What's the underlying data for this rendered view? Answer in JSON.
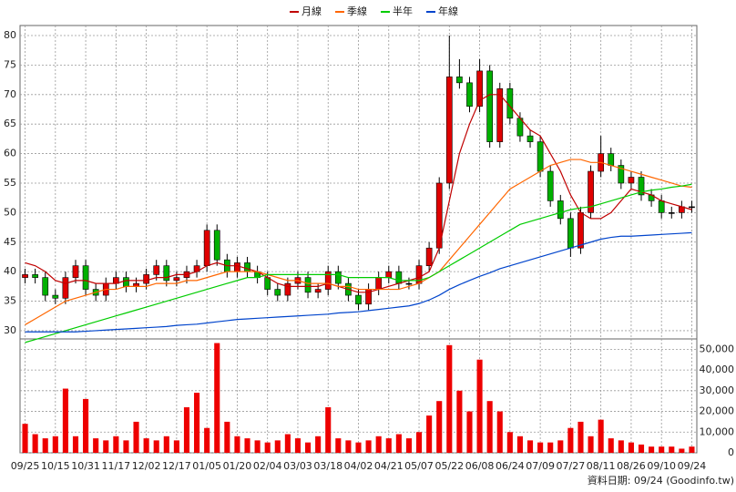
{
  "chart_data": {
    "type": "candlestick",
    "x": [
      0,
      1,
      2,
      3,
      4,
      5,
      6,
      7,
      8,
      9,
      10,
      11,
      12,
      13,
      14,
      15,
      16,
      17,
      18,
      19,
      20,
      21,
      22,
      23,
      24,
      25,
      26,
      27,
      28,
      29,
      30,
      31,
      32,
      33,
      34,
      35,
      36,
      37,
      38,
      39,
      40,
      41,
      42,
      43,
      44,
      45,
      46,
      47,
      48,
      49,
      50,
      51,
      52,
      53,
      54,
      55,
      56,
      57,
      58,
      59,
      60,
      61,
      62,
      63,
      64,
      65,
      66
    ],
    "xlim": [
      -0.5,
      66.5
    ],
    "xticks": [
      {
        "value": 0,
        "label": "09/25"
      },
      {
        "value": 3,
        "label": "10/15"
      },
      {
        "value": 6,
        "label": "10/31"
      },
      {
        "value": 9,
        "label": "11/17"
      },
      {
        "value": 12,
        "label": "12/02"
      },
      {
        "value": 15,
        "label": "12/17"
      },
      {
        "value": 18,
        "label": "01/05"
      },
      {
        "value": 21,
        "label": "01/20"
      },
      {
        "value": 24,
        "label": "02/04"
      },
      {
        "value": 27,
        "label": "03/03"
      },
      {
        "value": 30,
        "label": "03/18"
      },
      {
        "value": 33,
        "label": "04/02"
      },
      {
        "value": 36,
        "label": "04/21"
      },
      {
        "value": 39,
        "label": "05/07"
      },
      {
        "value": 42,
        "label": "05/22"
      },
      {
        "value": 45,
        "label": "06/08"
      },
      {
        "value": 48,
        "label": "06/24"
      },
      {
        "value": 51,
        "label": "07/09"
      },
      {
        "value": 54,
        "label": "07/27"
      },
      {
        "value": 57,
        "label": "08/11"
      },
      {
        "value": 60,
        "label": "08/26"
      },
      {
        "value": 63,
        "label": "09/10"
      },
      {
        "value": 66,
        "label": "09/24"
      }
    ],
    "open": [
      39,
      39.5,
      39,
      36,
      35.5,
      39,
      41,
      37,
      36,
      38,
      39,
      37.5,
      38,
      39.5,
      41,
      38.5,
      39,
      40,
      41,
      47,
      42,
      40,
      41.5,
      40,
      39,
      37,
      36,
      38,
      39,
      36.5,
      37,
      40,
      38,
      36,
      34.5,
      37,
      39,
      40,
      38,
      38,
      41,
      44,
      55,
      73,
      72,
      68,
      74,
      62,
      71,
      66,
      63,
      62,
      57,
      52,
      49,
      44,
      50,
      57,
      60,
      58,
      55,
      56,
      53,
      52,
      50,
      50,
      51
    ],
    "high": [
      40.5,
      40.5,
      40,
      37,
      40,
      42,
      42,
      38,
      39,
      40,
      40,
      39,
      40.5,
      42,
      42,
      40,
      41,
      42,
      48,
      48,
      43,
      42.5,
      42.5,
      41,
      40,
      38,
      39,
      40,
      40,
      38,
      41,
      41,
      39,
      37,
      38,
      40,
      41,
      41,
      39,
      42,
      45,
      56,
      80,
      76,
      73,
      76,
      75,
      72,
      72,
      67,
      64,
      63,
      58,
      53,
      50,
      51,
      58,
      63,
      61,
      59,
      57,
      57,
      54,
      53,
      51,
      52,
      52
    ],
    "low": [
      38,
      38,
      35,
      34.5,
      34.5,
      38,
      36,
      35,
      35,
      37,
      36.5,
      36.5,
      37,
      38.5,
      37.5,
      37.5,
      38,
      39,
      40,
      41,
      39,
      39,
      39,
      38,
      36,
      35,
      35,
      37,
      35.5,
      35.5,
      36,
      37,
      35,
      33.5,
      33.5,
      36,
      38,
      37,
      37,
      37,
      40,
      43,
      54,
      71,
      67,
      67,
      61,
      61,
      65,
      62,
      61,
      56,
      51,
      48,
      42.5,
      43,
      49,
      56,
      57,
      54,
      54,
      52,
      51,
      49,
      49,
      49,
      50
    ],
    "close": [
      39.5,
      39,
      36,
      35.5,
      39,
      41,
      37,
      36,
      38,
      39,
      37.5,
      38,
      39.5,
      41,
      38.5,
      39,
      40,
      41,
      47,
      42,
      40,
      41.5,
      40,
      39,
      37,
      36,
      38,
      39,
      36.5,
      37,
      40,
      38,
      36,
      34.5,
      37,
      39,
      40,
      38,
      38,
      41,
      44,
      55,
      73,
      72,
      68,
      74,
      62,
      71,
      66,
      63,
      62,
      57,
      52,
      49,
      44,
      50,
      57,
      60,
      58,
      55,
      56,
      53,
      52,
      50,
      50,
      51,
      51
    ],
    "up_color": "#e00000",
    "down_color": "#00b000",
    "ylim": [
      28.6,
      81.7
    ],
    "yticks": [
      30,
      35,
      40,
      45,
      50,
      55,
      60,
      65,
      70,
      75,
      80
    ],
    "grid": true,
    "series": [
      {
        "name": "月線",
        "color": "#c00000",
        "values": [
          41.5,
          41,
          40,
          38.5,
          38,
          38.5,
          38.5,
          38,
          38,
          38,
          38.5,
          38.5,
          38.5,
          39,
          39,
          39.5,
          39.5,
          40,
          41,
          41.5,
          41,
          41,
          40.5,
          40,
          39,
          38,
          37.5,
          37.5,
          37.5,
          37.5,
          38,
          37.5,
          37,
          36.5,
          36.5,
          37,
          37.5,
          38,
          38.5,
          39,
          40,
          44,
          52,
          60,
          65,
          69,
          70,
          70,
          68,
          66,
          64,
          63,
          60,
          57,
          53,
          50,
          49,
          49,
          50,
          52,
          54,
          53.5,
          53,
          52,
          51.5,
          51,
          50.5
        ]
      },
      {
        "name": "季線",
        "color": "#ff6600",
        "values": [
          31,
          32,
          33,
          34,
          35,
          35.5,
          36,
          36.5,
          37,
          37,
          37.5,
          37.5,
          37.5,
          38,
          38,
          38,
          38.5,
          38.5,
          39,
          39.5,
          40,
          40,
          40,
          40,
          39.5,
          39,
          38.5,
          38.5,
          38,
          38,
          38,
          37.5,
          37.5,
          37,
          37,
          37,
          37,
          37,
          37.5,
          38,
          39,
          40,
          42,
          44,
          46,
          48,
          50,
          52,
          54,
          55,
          56,
          57,
          58,
          58.5,
          59,
          59,
          58.5,
          58.5,
          58,
          57.5,
          57,
          56.5,
          56,
          55.5,
          55,
          54.5,
          54.3
        ]
      },
      {
        "name": "半年",
        "color": "#00cc00",
        "values": [
          28,
          28.5,
          29,
          29.5,
          30,
          30.5,
          31,
          31.5,
          32,
          32.5,
          33,
          33.5,
          34,
          34.5,
          35,
          35.5,
          36,
          36.5,
          37,
          37.5,
          38,
          38.5,
          39,
          39,
          39.5,
          39.5,
          39.5,
          39.5,
          39.5,
          39.5,
          39.5,
          39.5,
          39,
          39,
          39,
          39,
          39,
          38.5,
          38.5,
          38.5,
          39,
          40,
          41,
          42,
          43,
          44,
          45,
          46,
          47,
          48,
          48.5,
          49,
          49.5,
          50,
          50.5,
          50.8,
          51,
          51.5,
          52,
          52.5,
          53,
          53.5,
          53.8,
          54,
          54.3,
          54.5,
          54.8
        ]
      },
      {
        "name": "年線",
        "color": "#0044cc",
        "values": [
          29.8,
          29.8,
          29.8,
          29.8,
          29.8,
          29.8,
          29.9,
          30,
          30.1,
          30.2,
          30.3,
          30.4,
          30.5,
          30.6,
          30.7,
          30.9,
          31,
          31.1,
          31.3,
          31.5,
          31.7,
          31.9,
          32,
          32.1,
          32.2,
          32.3,
          32.4,
          32.5,
          32.6,
          32.7,
          32.8,
          33,
          33.1,
          33.2,
          33.4,
          33.6,
          33.8,
          34,
          34.2,
          34.6,
          35.2,
          36,
          37,
          37.8,
          38.5,
          39.2,
          39.8,
          40.5,
          41,
          41.5,
          42,
          42.5,
          43,
          43.5,
          44,
          44.5,
          45,
          45.5,
          45.8,
          46,
          46,
          46.1,
          46.2,
          46.3,
          46.4,
          46.5,
          46.6
        ]
      }
    ],
    "volume": [
      14000,
      9000,
      7000,
      8000,
      31000,
      8000,
      26000,
      7000,
      6000,
      8000,
      6000,
      15000,
      7000,
      6000,
      8000,
      6000,
      22000,
      29000,
      12000,
      53000,
      15000,
      8000,
      7000,
      6000,
      5000,
      6000,
      9000,
      7000,
      5000,
      8000,
      22000,
      7000,
      6000,
      5000,
      6000,
      8000,
      7000,
      9000,
      7000,
      10000,
      18000,
      25000,
      52000,
      30000,
      20000,
      45000,
      25000,
      20000,
      10000,
      8000,
      6000,
      5000,
      5000,
      6000,
      12000,
      15000,
      8000,
      16000,
      7000,
      6000,
      5000,
      4000,
      3000,
      3000,
      3000,
      2000,
      3000
    ],
    "volume_color": "#ee0000",
    "y2lim": [
      0,
      55000
    ],
    "y2ticks": [
      {
        "value": 0,
        "label": "0"
      },
      {
        "value": 10000,
        "label": "10,000"
      },
      {
        "value": 20000,
        "label": "20,000"
      },
      {
        "value": 30000,
        "label": "30,000"
      },
      {
        "value": 40000,
        "label": "40,000"
      },
      {
        "value": 50000,
        "label": "50,000"
      }
    ],
    "footer": "資料日期: 09/24 (Goodinfo.tw)"
  }
}
